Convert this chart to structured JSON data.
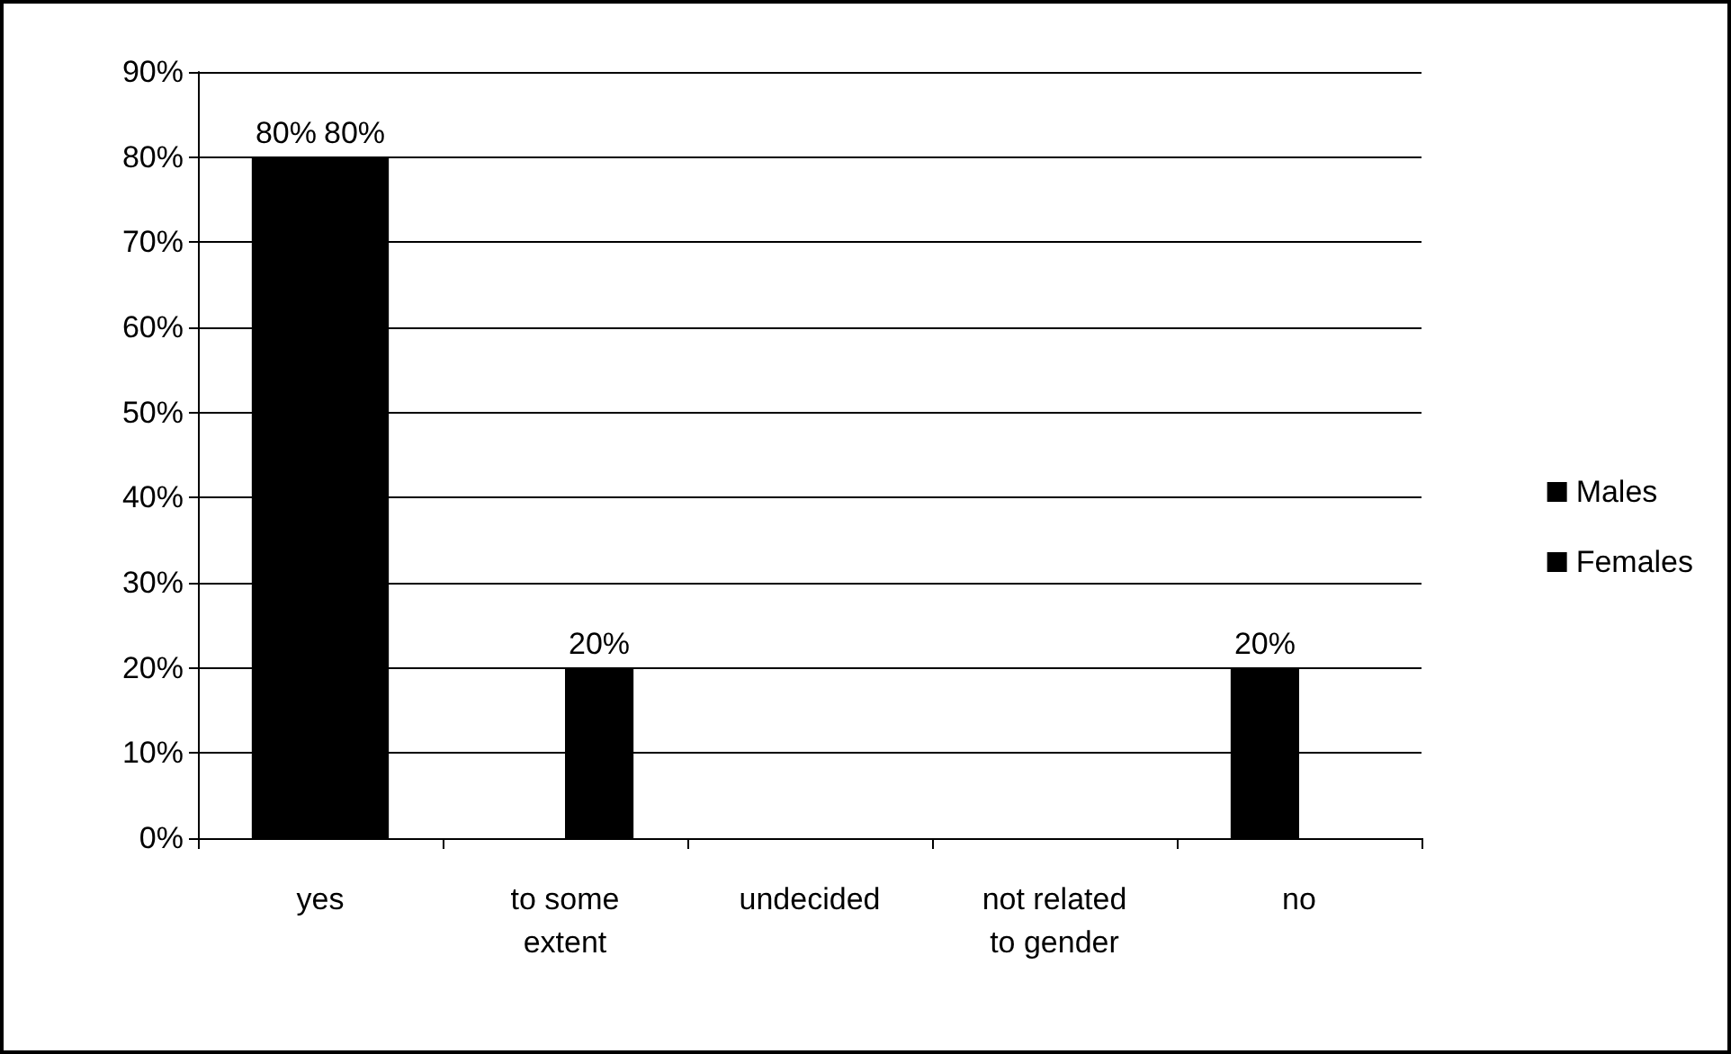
{
  "chart_data": {
    "type": "bar",
    "categories": [
      "yes",
      "to some\nextent",
      "undecided",
      "not related\nto gender",
      "no"
    ],
    "series": [
      {
        "name": "Males",
        "color": "#000000",
        "values": [
          80,
          0,
          0,
          0,
          20
        ],
        "value_labels": [
          "80%",
          null,
          null,
          null,
          "20%"
        ]
      },
      {
        "name": "Females",
        "color": "#000000",
        "values": [
          80,
          20,
          0,
          0,
          0
        ],
        "value_labels": [
          "80%",
          "20%",
          null,
          null,
          null
        ]
      }
    ],
    "ylim": [
      0,
      90
    ],
    "yticks": [
      {
        "value": 0,
        "label": "0%"
      },
      {
        "value": 10,
        "label": "10%"
      },
      {
        "value": 20,
        "label": "20%"
      },
      {
        "value": 30,
        "label": "30%"
      },
      {
        "value": 40,
        "label": "40%"
      },
      {
        "value": 50,
        "label": "50%"
      },
      {
        "value": 60,
        "label": "60%"
      },
      {
        "value": 70,
        "label": "70%"
      },
      {
        "value": 80,
        "label": "80%"
      },
      {
        "value": 90,
        "label": "90%"
      }
    ],
    "grid": "y",
    "legend": "right"
  }
}
